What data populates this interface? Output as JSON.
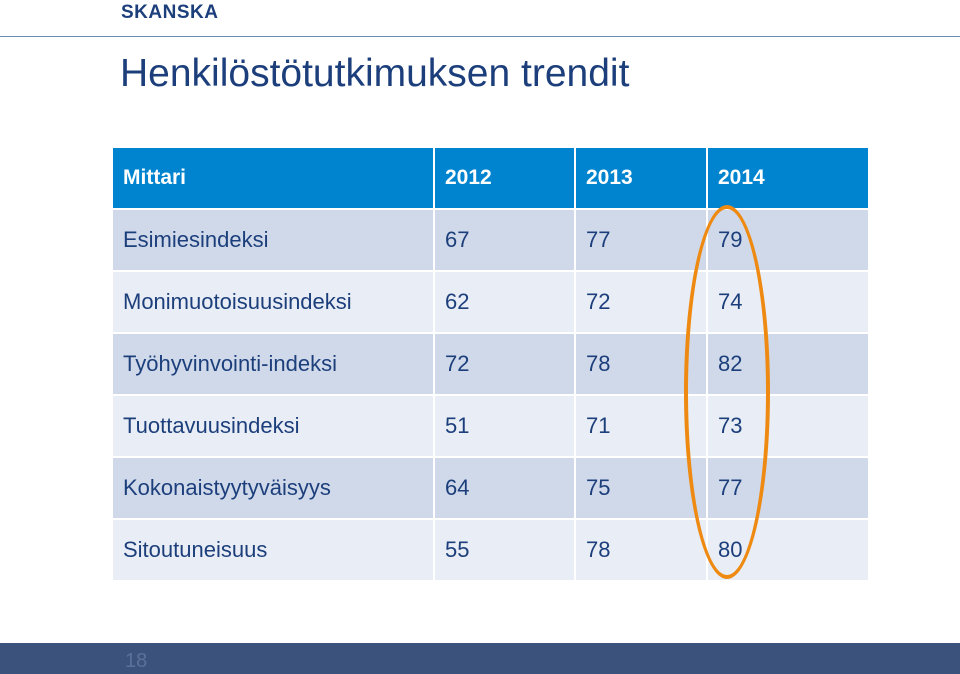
{
  "logo": "SKANSKA",
  "title": "Henkilöstötutkimuksen trendit",
  "table": {
    "headers": [
      "Mittari",
      "2012",
      "2013",
      "2014"
    ],
    "rows": [
      [
        "Esimiesindeksi",
        "67",
        "77",
        "79"
      ],
      [
        "Monimuotoisuusindeksi",
        "62",
        "72",
        "74"
      ],
      [
        "Työhyvinvointi-indeksi",
        "72",
        "78",
        "82"
      ],
      [
        "Tuottavuusindeksi",
        "51",
        "71",
        "73"
      ],
      [
        "Kokonaistyytyväisyys",
        "64",
        "75",
        "77"
      ],
      [
        "Sitoutuneisuus",
        "55",
        "78",
        "80"
      ]
    ]
  },
  "footer": {
    "page_number": "18"
  },
  "colors": {
    "header_fill": "#0084cf",
    "row_fill_dark": "#d0d9ea",
    "row_fill_light": "#e9edf5",
    "highlight": "#ee8a12",
    "footer_bar": "#3b527d",
    "text": "#1c3f7c"
  }
}
